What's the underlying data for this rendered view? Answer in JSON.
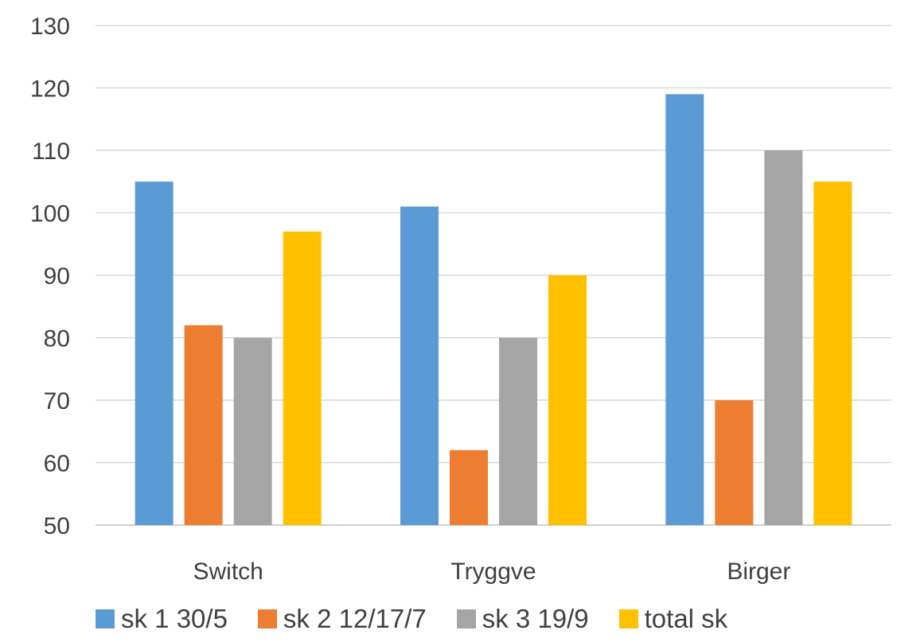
{
  "chart_data": {
    "type": "bar",
    "title": "",
    "xlabel": "",
    "ylabel": "",
    "categories": [
      "Switch",
      "Tryggve",
      "Birger"
    ],
    "series": [
      {
        "name": "sk 1 30/5",
        "color": "#5B9BD5",
        "values": [
          105,
          101,
          119
        ]
      },
      {
        "name": "sk 2 12/17/7",
        "color": "#ED7D31",
        "values": [
          82,
          62,
          70
        ]
      },
      {
        "name": "sk 3 19/9",
        "color": "#A5A5A5",
        "values": [
          80,
          80,
          110
        ]
      },
      {
        "name": "total sk",
        "color": "#FFC000",
        "values": [
          97,
          90,
          105
        ]
      }
    ],
    "ylim": [
      50,
      130
    ],
    "yticks": [
      50,
      60,
      70,
      80,
      90,
      100,
      110,
      120,
      130
    ],
    "grid": true,
    "legend_position": "bottom"
  }
}
